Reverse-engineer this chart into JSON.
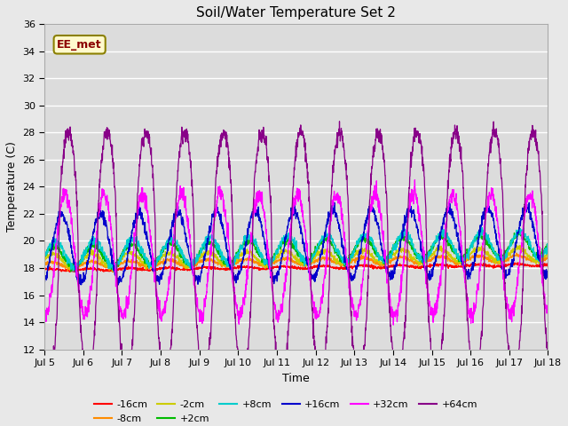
{
  "title": "Soil/Water Temperature Set 2",
  "xlabel": "Time",
  "ylabel": "Temperature (C)",
  "ylim": [
    12,
    36
  ],
  "yticks": [
    12,
    14,
    16,
    18,
    20,
    22,
    24,
    26,
    28,
    30,
    32,
    34,
    36
  ],
  "duration_days": 13,
  "xtick_labels": [
    "Jul 5",
    "Jul 6",
    "Jul 7",
    "Jul 8",
    "Jul 9",
    "Jul 10",
    "Jul 11",
    "Jul 12",
    "Jul 13",
    "Jul 14",
    "Jul 15",
    "Jul 16",
    "Jul 17",
    "Jul 18"
  ],
  "annotation_text": "EE_met",
  "annotation_color": "#8B0000",
  "annotation_bg": "#FFFACD",
  "annotation_border": "#8B8000",
  "series": [
    {
      "label": "-16cm",
      "color": "#FF0000"
    },
    {
      "label": "-8cm",
      "color": "#FF8C00"
    },
    {
      "label": "-2cm",
      "color": "#CCCC00"
    },
    {
      "label": "+2cm",
      "color": "#00BB00"
    },
    {
      "label": "+8cm",
      "color": "#00CCCC"
    },
    {
      "label": "+16cm",
      "color": "#0000CC"
    },
    {
      "label": "+32cm",
      "color": "#FF00FF"
    },
    {
      "label": "+64cm",
      "color": "#880088"
    }
  ],
  "bg_color": "#E8E8E8",
  "plot_bg_color": "#DCDCDC",
  "grid_color": "#FFFFFF",
  "n_points": 2000
}
